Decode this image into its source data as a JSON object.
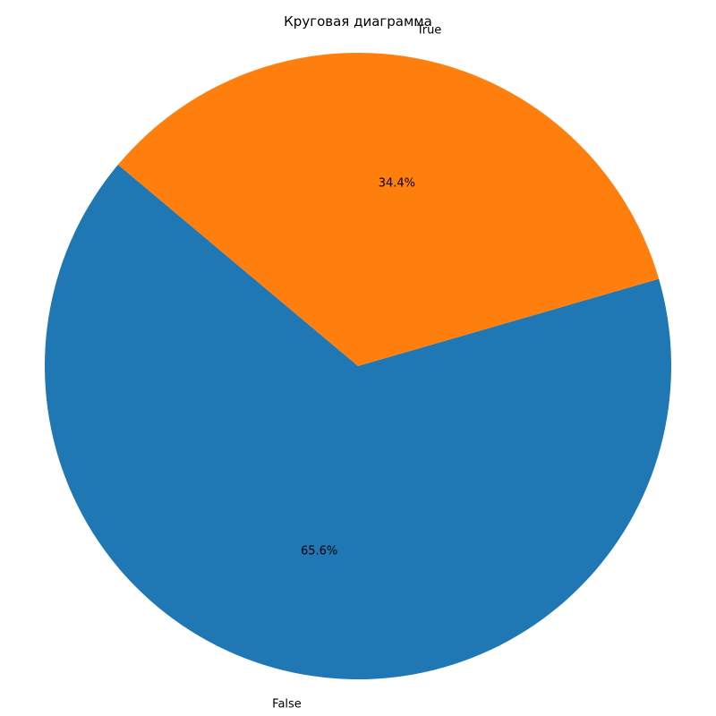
{
  "chart_data": {
    "type": "pie",
    "title": "Круговая диаграмма",
    "slices": [
      {
        "label": "False",
        "value": 65.6,
        "pct_label": "65.6%",
        "color": "#1f77b4"
      },
      {
        "label": "True",
        "value": 34.4,
        "pct_label": "34.4%",
        "color": "#ff7f0e"
      }
    ],
    "start_angle_deg": 140,
    "direction": "counterclockwise",
    "legend": "none",
    "grid": false
  }
}
